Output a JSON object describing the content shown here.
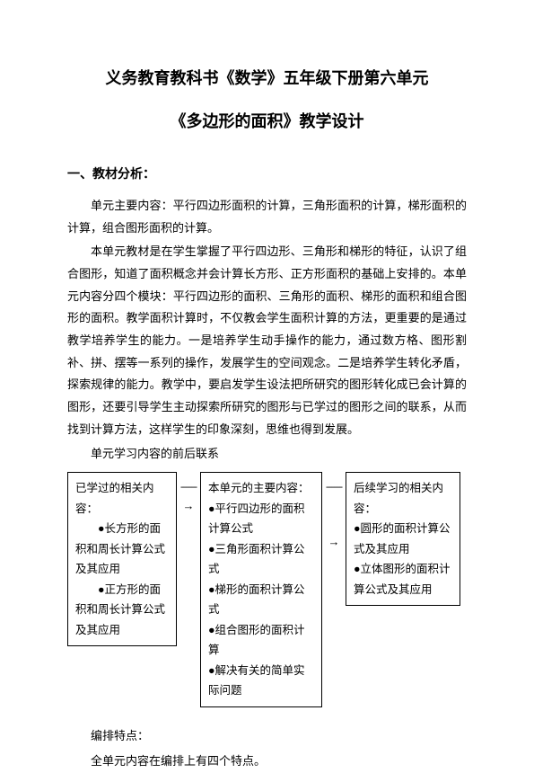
{
  "title1": "义务教育教科书《数学》五年级下册第六单元",
  "title2": "《多边形的面积》教学设计",
  "section1_heading": "一、教材分析：",
  "para1": "单元主要内容：平行四边形面积的计算，三角形面积的计算，梯形面积的计算，组合图形面积的计算。",
  "para2": "本单元教材是在学生掌握了平行四边形、三角形和梯形的特征，认识了组合图形，知道了面积概念并会计算长方形、正方形面积的基础上安排的。本单元内容分四个模块：平行四边形的面积、三角形的面积、梯形的面积和组合图形的面积。教学面积计算时，不仅教会学生面积计算的方法，更重要的是通过教学培养学生的能力。一是培养学生动手操作的能力，通过数方格、图形割补、拼、摆等一系列的操作，发展学生的空间观念。二是培养学生转化矛盾，探索规律的能力。教学中，要启发学生设法把所研究的图形转化成已会计算的图形，还要引导学生主动探索所研究的图形与已学过的图形之间的联系，从而找到计算方法，这样学生的印象深刻，思维也得到发展。",
  "sub_para": "单元学习内容的前后联系",
  "box_left_title": "已学过的相关内容：",
  "box_left_items": [
    "●长方形的面积和周长计算公式及其应用",
    "●正方形的面积和周长计算公式及其应用"
  ],
  "box_mid_title": "本单元的主要内容：",
  "box_mid_items": [
    "●平行四边形的面积计算公式",
    "●三角形面积计算公式",
    "●梯形的面积计算公式",
    "●组合图形的面积计算",
    "●解决有关的简单实际问题"
  ],
  "box_right_title": "后续学习的相关内容：",
  "box_right_items": [
    "●圆形的面积计算公式及其应用",
    "●立体图形的面积计算公式及其应用"
  ],
  "arrow_dash": "------",
  "arrow_symbol": "→",
  "footer1": "编排特点：",
  "footer2": "全单元内容在编排上有四个特点。"
}
